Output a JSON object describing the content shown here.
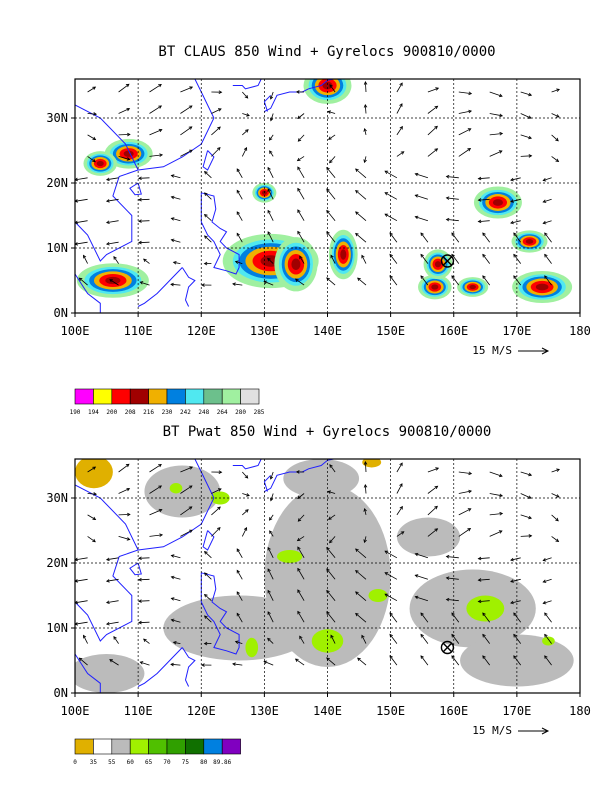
{
  "chart_data": [
    {
      "type": "heatmap",
      "title": "BT CLAUS 850 Wind + Gyrelocs 900810/0000",
      "x_ticks": [
        "100E",
        "110E",
        "120E",
        "130E",
        "140E",
        "150E",
        "160E",
        "170E",
        "180"
      ],
      "y_ticks": [
        "0N",
        "10N",
        "20N",
        "30N"
      ],
      "xlim": [
        100,
        180
      ],
      "ylim": [
        0,
        36
      ],
      "grid": true,
      "vector_key": "15 M/S",
      "cyclone_marker": {
        "lon": 159,
        "lat": 8
      },
      "colorbar": {
        "labels": [
          "190",
          "194",
          "200",
          "208",
          "216",
          "230",
          "242",
          "248",
          "264",
          "280",
          "285"
        ],
        "colors": [
          "#ff00ff",
          "#ffff00",
          "#ff0000",
          "#a00000",
          "#f0b000",
          "#0080e0",
          "#50e8f0",
          "#6cc08c",
          "#a0f0a0",
          "#e0e0e0"
        ]
      },
      "cold_cloud_clusters": [
        {
          "lon": 108.5,
          "lat": 24.5,
          "rx": 2.0,
          "ry": 1.2
        },
        {
          "lon": 104.0,
          "lat": 23.0,
          "rx": 1.4,
          "ry": 1.0
        },
        {
          "lon": 106.0,
          "lat": 5.0,
          "rx": 3.0,
          "ry": 1.4
        },
        {
          "lon": 131.0,
          "lat": 8.0,
          "rx": 4.0,
          "ry": 2.2
        },
        {
          "lon": 135.0,
          "lat": 7.5,
          "rx": 1.8,
          "ry": 2.2
        },
        {
          "lon": 142.5,
          "lat": 9.0,
          "rx": 1.2,
          "ry": 2.0
        },
        {
          "lon": 140.0,
          "lat": 35.0,
          "rx": 2.0,
          "ry": 1.5
        },
        {
          "lon": 167.0,
          "lat": 17.0,
          "rx": 2.0,
          "ry": 1.3
        },
        {
          "lon": 157.0,
          "lat": 4.0,
          "rx": 1.4,
          "ry": 1.0
        },
        {
          "lon": 163.0,
          "lat": 4.0,
          "rx": 1.3,
          "ry": 0.8
        },
        {
          "lon": 174.0,
          "lat": 4.0,
          "rx": 2.5,
          "ry": 1.3
        },
        {
          "lon": 172.0,
          "lat": 11.0,
          "rx": 1.5,
          "ry": 0.9
        },
        {
          "lon": 157.5,
          "lat": 7.5,
          "rx": 1.2,
          "ry": 1.2
        },
        {
          "lon": 130.0,
          "lat": 18.5,
          "rx": 1.0,
          "ry": 0.8
        }
      ]
    },
    {
      "type": "heatmap",
      "title": "BT Pwat 850 Wind + Gyrelocs 900810/0000",
      "x_ticks": [
        "100E",
        "110E",
        "120E",
        "130E",
        "140E",
        "150E",
        "160E",
        "170E",
        "180"
      ],
      "y_ticks": [
        "0N",
        "10N",
        "20N",
        "30N"
      ],
      "xlim": [
        100,
        180
      ],
      "ylim": [
        0,
        36
      ],
      "grid": true,
      "vector_key": "15 M/S",
      "cyclone_marker": {
        "lon": 159,
        "lat": 7
      },
      "colorbar": {
        "labels": [
          "0",
          "35",
          "55",
          "60",
          "65",
          "70",
          "75",
          "80",
          "89.86"
        ],
        "colors": [
          "#e0b000",
          "#ffffff",
          "#bbbbbb",
          "#a0f000",
          "#50c000",
          "#30a000",
          "#107000",
          "#0080e0",
          "#8000c0"
        ]
      },
      "moist_patches": [
        {
          "lon": 126.0,
          "lat": 10.0,
          "rx": 12.0,
          "ry": 5.0
        },
        {
          "lon": 140.0,
          "lat": 18.0,
          "rx": 10.0,
          "ry": 14.0
        },
        {
          "lon": 163.0,
          "lat": 13.0,
          "rx": 10.0,
          "ry": 6.0
        },
        {
          "lon": 117.0,
          "lat": 31.0,
          "rx": 6.0,
          "ry": 4.0
        },
        {
          "lon": 105.0,
          "lat": 3.0,
          "rx": 6.0,
          "ry": 3.0
        },
        {
          "lon": 170.0,
          "lat": 5.0,
          "rx": 9.0,
          "ry": 4.0
        },
        {
          "lon": 139.0,
          "lat": 33.0,
          "rx": 6.0,
          "ry": 3.0
        },
        {
          "lon": 156.0,
          "lat": 24.0,
          "rx": 5.0,
          "ry": 3.0
        }
      ],
      "very_moist_patches": [
        {
          "lon": 140.0,
          "lat": 8.0,
          "rx": 2.5,
          "ry": 1.8
        },
        {
          "lon": 165.0,
          "lat": 13.0,
          "rx": 3.0,
          "ry": 2.0
        },
        {
          "lon": 134.0,
          "lat": 21.0,
          "rx": 2.0,
          "ry": 1.0
        },
        {
          "lon": 148.0,
          "lat": 15.0,
          "rx": 1.5,
          "ry": 1.0
        },
        {
          "lon": 123.0,
          "lat": 30.0,
          "rx": 1.5,
          "ry": 1.0
        },
        {
          "lon": 116.0,
          "lat": 31.5,
          "rx": 1.0,
          "ry": 0.8
        },
        {
          "lon": 128.0,
          "lat": 7.0,
          "rx": 1.0,
          "ry": 1.5
        },
        {
          "lon": 175.0,
          "lat": 8.0,
          "rx": 1.0,
          "ry": 0.7
        }
      ],
      "dry_patches": [
        {
          "lon": 103.0,
          "lat": 34.0,
          "rx": 3.0,
          "ry": 2.5
        },
        {
          "lon": 147.0,
          "lat": 35.5,
          "rx": 1.5,
          "ry": 0.8
        }
      ]
    }
  ]
}
